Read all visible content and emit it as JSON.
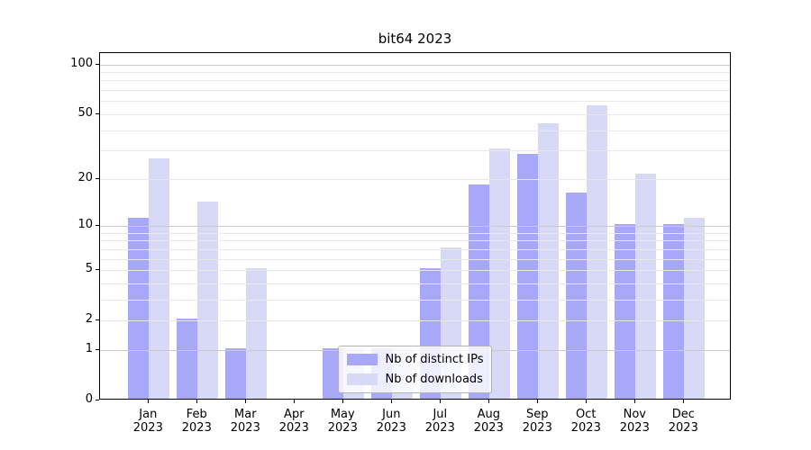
{
  "chart_data": {
    "type": "bar",
    "title": "bit64 2023",
    "categories": [
      "Jan 2023",
      "Feb 2023",
      "Mar 2023",
      "Apr 2023",
      "May 2023",
      "Jun 2023",
      "Jul 2023",
      "Aug 2023",
      "Sep 2023",
      "Oct 2023",
      "Nov 2023",
      "Dec 2023"
    ],
    "series": [
      {
        "name": "Nb of distinct IPs",
        "color": "#a8a8f9",
        "values": [
          11,
          2,
          1,
          0,
          1,
          1,
          5,
          18,
          28,
          16,
          10,
          10
        ]
      },
      {
        "name": "Nb of downloads",
        "color": "#d8d8f7",
        "values": [
          26,
          14,
          5,
          0,
          1,
          1,
          7,
          30,
          43,
          55,
          21,
          11
        ]
      }
    ],
    "xlabel": "",
    "ylabel": "",
    "yscale": "log1p",
    "ylim": [
      0,
      117
    ],
    "yticks": [
      0,
      1,
      2,
      5,
      10,
      20,
      50,
      100
    ],
    "major_gridlines": [
      1,
      10,
      100
    ],
    "minor_gridlines": [
      2,
      3,
      4,
      5,
      6,
      7,
      8,
      9,
      20,
      30,
      40,
      50,
      60,
      70,
      80,
      90
    ],
    "grid": true,
    "legend_position": "lower center"
  }
}
